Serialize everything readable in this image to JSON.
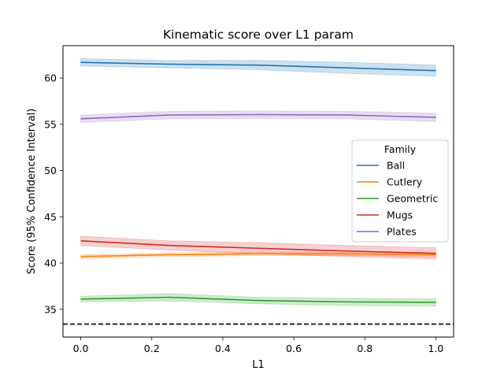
{
  "chart_data": {
    "type": "line",
    "title": "Kinematic score over L1 param",
    "xlabel": "L1",
    "ylabel": "Score (95% Confidence Interval)",
    "xlim": [
      -0.05,
      1.05
    ],
    "ylim": [
      32,
      63.5
    ],
    "xticks": [
      0.0,
      0.2,
      0.4,
      0.6,
      0.8,
      1.0
    ],
    "xtick_labels": [
      "0.0",
      "0.2",
      "0.4",
      "0.6",
      "0.8",
      "1.0"
    ],
    "yticks": [
      35,
      40,
      45,
      50,
      55,
      60
    ],
    "ytick_labels": [
      "35",
      "40",
      "45",
      "50",
      "55",
      "60"
    ],
    "x": [
      0.0,
      0.25,
      0.5,
      0.75,
      1.0
    ],
    "grid": false,
    "legend": {
      "title": "Family",
      "placement": "center-right"
    },
    "series": [
      {
        "name": "Ball",
        "color": "#1f77b4",
        "values": [
          61.7,
          61.5,
          61.4,
          61.1,
          60.8
        ],
        "lower": [
          61.3,
          61.1,
          60.9,
          60.5,
          60.2
        ],
        "upper": [
          62.1,
          61.9,
          61.9,
          61.7,
          61.4
        ]
      },
      {
        "name": "Cutlery",
        "color": "#ff7f0e",
        "values": [
          40.7,
          40.9,
          41.0,
          41.0,
          40.9
        ],
        "lower": [
          40.5,
          40.7,
          40.8,
          40.8,
          40.7
        ],
        "upper": [
          40.9,
          41.1,
          41.2,
          41.2,
          41.1
        ]
      },
      {
        "name": "Geometric",
        "color": "#2ca02c",
        "values": [
          36.1,
          36.3,
          35.95,
          35.8,
          35.75
        ],
        "lower": [
          35.8,
          35.9,
          35.6,
          35.4,
          35.35
        ],
        "upper": [
          36.4,
          36.7,
          36.3,
          36.2,
          36.15
        ]
      },
      {
        "name": "Mugs",
        "color": "#d62728",
        "values": [
          42.4,
          41.9,
          41.6,
          41.3,
          41.05
        ],
        "lower": [
          41.9,
          41.4,
          41.0,
          40.7,
          40.45
        ],
        "upper": [
          42.9,
          42.4,
          42.2,
          41.9,
          41.65
        ]
      },
      {
        "name": "Plates",
        "color": "#9467bd",
        "values": [
          55.6,
          56.0,
          56.05,
          56.0,
          55.75
        ],
        "lower": [
          55.2,
          55.6,
          55.65,
          55.6,
          55.3
        ],
        "upper": [
          56.0,
          56.4,
          56.45,
          56.4,
          56.2
        ]
      }
    ],
    "reference_line": {
      "y": 33.4,
      "style": "dashed",
      "color": "#000000"
    }
  }
}
